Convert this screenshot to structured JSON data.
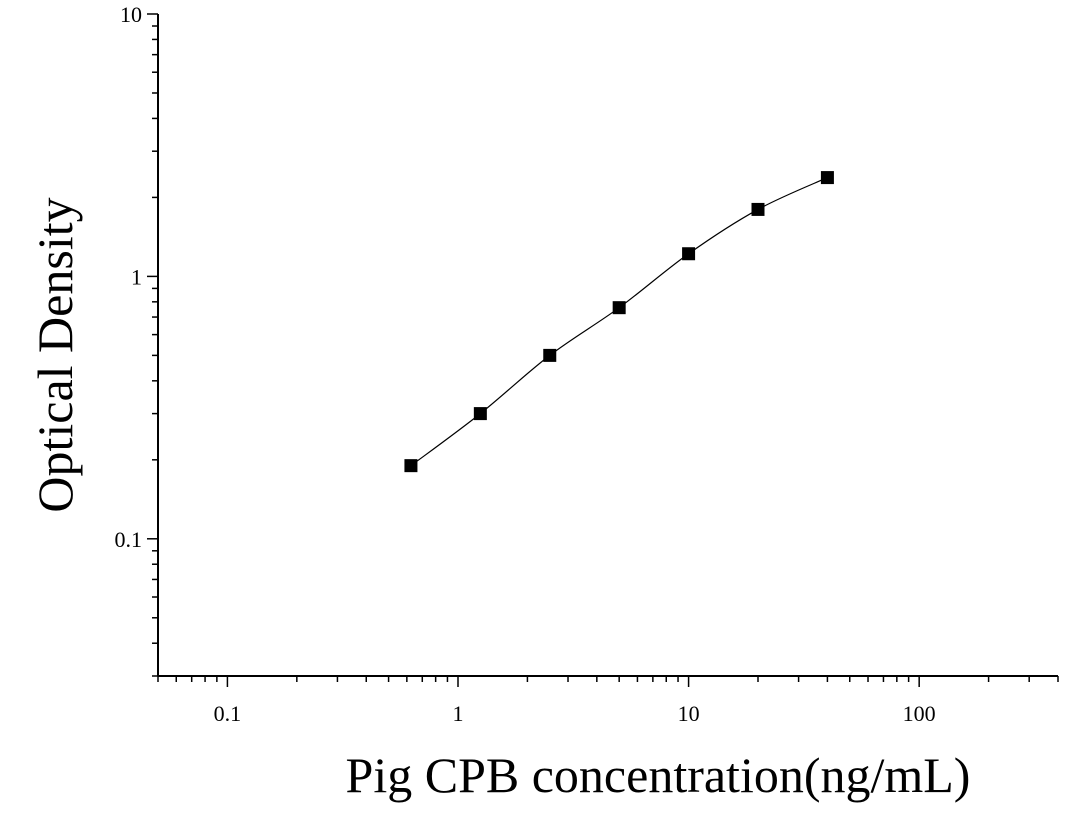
{
  "chart_data": {
    "type": "scatter",
    "xlabel": "Pig CPB concentration(ng/mL)",
    "ylabel": "Optical Density",
    "x_scale": "log",
    "y_scale": "log",
    "xlim": [
      0.05,
      400
    ],
    "ylim": [
      0.03,
      10
    ],
    "x_ticks": [
      {
        "value": 0.1,
        "label": "0.1"
      },
      {
        "value": 1,
        "label": "1"
      },
      {
        "value": 10,
        "label": "10"
      },
      {
        "value": 100,
        "label": "100"
      }
    ],
    "y_ticks": [
      {
        "value": 0.1,
        "label": "0.1"
      },
      {
        "value": 1,
        "label": "1"
      },
      {
        "value": 10,
        "label": "10"
      }
    ],
    "grid": false,
    "series": [
      {
        "x": [
          0.625,
          1.25,
          2.5,
          5,
          10,
          20,
          40
        ],
        "y": [
          0.19,
          0.3,
          0.5,
          0.76,
          1.22,
          1.8,
          2.38
        ],
        "marker": "square",
        "fit_line": true,
        "color": "#000000"
      }
    ]
  }
}
